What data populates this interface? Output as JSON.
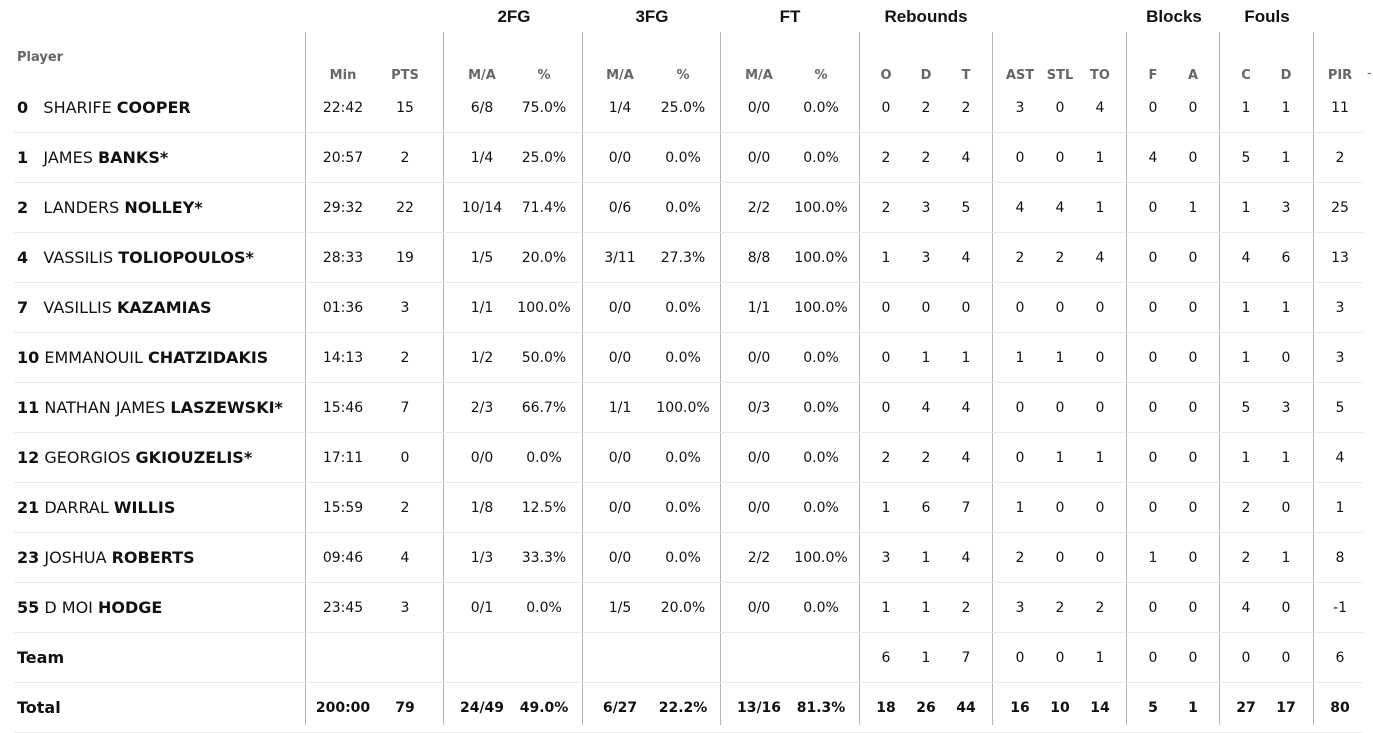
{
  "group_headers": [
    "2FG",
    "3FG",
    "FT",
    "Rebounds",
    "Blocks",
    "Fouls"
  ],
  "player_label": "Player",
  "columns": [
    "Min",
    "PTS",
    "M/A",
    "%",
    "M/A",
    "%",
    "M/A",
    "%",
    "O",
    "D",
    "T",
    "AST",
    "STL",
    "TO",
    "F",
    "A",
    "C",
    "D",
    "PIR"
  ],
  "more_indicator": "-",
  "players": [
    {
      "num": "0",
      "first": "SHARIFE",
      "last": "COOPER",
      "stats": [
        "22:42",
        "15",
        "6/8",
        "75.0%",
        "1/4",
        "25.0%",
        "0/0",
        "0.0%",
        "0",
        "2",
        "2",
        "3",
        "0",
        "4",
        "0",
        "0",
        "1",
        "1",
        "11"
      ]
    },
    {
      "num": "1",
      "first": "JAMES",
      "last": "BANKS*",
      "stats": [
        "20:57",
        "2",
        "1/4",
        "25.0%",
        "0/0",
        "0.0%",
        "0/0",
        "0.0%",
        "2",
        "2",
        "4",
        "0",
        "0",
        "1",
        "4",
        "0",
        "5",
        "1",
        "2"
      ]
    },
    {
      "num": "2",
      "first": "LANDERS",
      "last": "NOLLEY*",
      "stats": [
        "29:32",
        "22",
        "10/14",
        "71.4%",
        "0/6",
        "0.0%",
        "2/2",
        "100.0%",
        "2",
        "3",
        "5",
        "4",
        "4",
        "1",
        "0",
        "1",
        "1",
        "3",
        "25"
      ]
    },
    {
      "num": "4",
      "first": "VASSILIS",
      "last": "TOLIOPOULOS*",
      "stats": [
        "28:33",
        "19",
        "1/5",
        "20.0%",
        "3/11",
        "27.3%",
        "8/8",
        "100.0%",
        "1",
        "3",
        "4",
        "2",
        "2",
        "4",
        "0",
        "0",
        "4",
        "6",
        "13"
      ]
    },
    {
      "num": "7",
      "first": "VASILLIS",
      "last": "KAZAMIAS",
      "stats": [
        "01:36",
        "3",
        "1/1",
        "100.0%",
        "0/0",
        "0.0%",
        "1/1",
        "100.0%",
        "0",
        "0",
        "0",
        "0",
        "0",
        "0",
        "0",
        "0",
        "1",
        "1",
        "3"
      ]
    },
    {
      "num": "10",
      "first": "EMMANOUIL",
      "last": "CHATZIDAKIS",
      "stats": [
        "14:13",
        "2",
        "1/2",
        "50.0%",
        "0/0",
        "0.0%",
        "0/0",
        "0.0%",
        "0",
        "1",
        "1",
        "1",
        "1",
        "0",
        "0",
        "0",
        "1",
        "0",
        "3"
      ]
    },
    {
      "num": "11",
      "first": "NATHAN JAMES",
      "last": "LASZEWSKI*",
      "stats": [
        "15:46",
        "7",
        "2/3",
        "66.7%",
        "1/1",
        "100.0%",
        "0/3",
        "0.0%",
        "0",
        "4",
        "4",
        "0",
        "0",
        "0",
        "0",
        "0",
        "5",
        "3",
        "5"
      ]
    },
    {
      "num": "12",
      "first": "GEORGIOS",
      "last": "GKIOUZELIS*",
      "stats": [
        "17:11",
        "0",
        "0/0",
        "0.0%",
        "0/0",
        "0.0%",
        "0/0",
        "0.0%",
        "2",
        "2",
        "4",
        "0",
        "1",
        "1",
        "0",
        "0",
        "1",
        "1",
        "4"
      ]
    },
    {
      "num": "21",
      "first": "DARRAL",
      "last": "WILLIS",
      "stats": [
        "15:59",
        "2",
        "1/8",
        "12.5%",
        "0/0",
        "0.0%",
        "0/0",
        "0.0%",
        "1",
        "6",
        "7",
        "1",
        "0",
        "0",
        "0",
        "0",
        "2",
        "0",
        "1"
      ]
    },
    {
      "num": "23",
      "first": "JOSHUA",
      "last": "ROBERTS",
      "stats": [
        "09:46",
        "4",
        "1/3",
        "33.3%",
        "0/0",
        "0.0%",
        "2/2",
        "100.0%",
        "3",
        "1",
        "4",
        "2",
        "0",
        "0",
        "1",
        "0",
        "2",
        "1",
        "8"
      ]
    },
    {
      "num": "55",
      "first": "D MOI",
      "last": "HODGE",
      "stats": [
        "23:45",
        "3",
        "0/1",
        "0.0%",
        "1/5",
        "20.0%",
        "0/0",
        "0.0%",
        "1",
        "1",
        "2",
        "3",
        "2",
        "2",
        "0",
        "0",
        "4",
        "0",
        "-1"
      ]
    }
  ],
  "team": {
    "label": "Team",
    "stats": [
      "",
      "",
      "",
      "",
      "",
      "",
      "",
      "",
      "6",
      "1",
      "7",
      "0",
      "0",
      "1",
      "0",
      "0",
      "0",
      "0",
      "6"
    ]
  },
  "total": {
    "label": "Total",
    "stats": [
      "200:00",
      "79",
      "24/49",
      "49.0%",
      "6/27",
      "22.2%",
      "13/16",
      "81.3%",
      "18",
      "26",
      "44",
      "16",
      "10",
      "14",
      "5",
      "1",
      "27",
      "17",
      "80"
    ]
  }
}
